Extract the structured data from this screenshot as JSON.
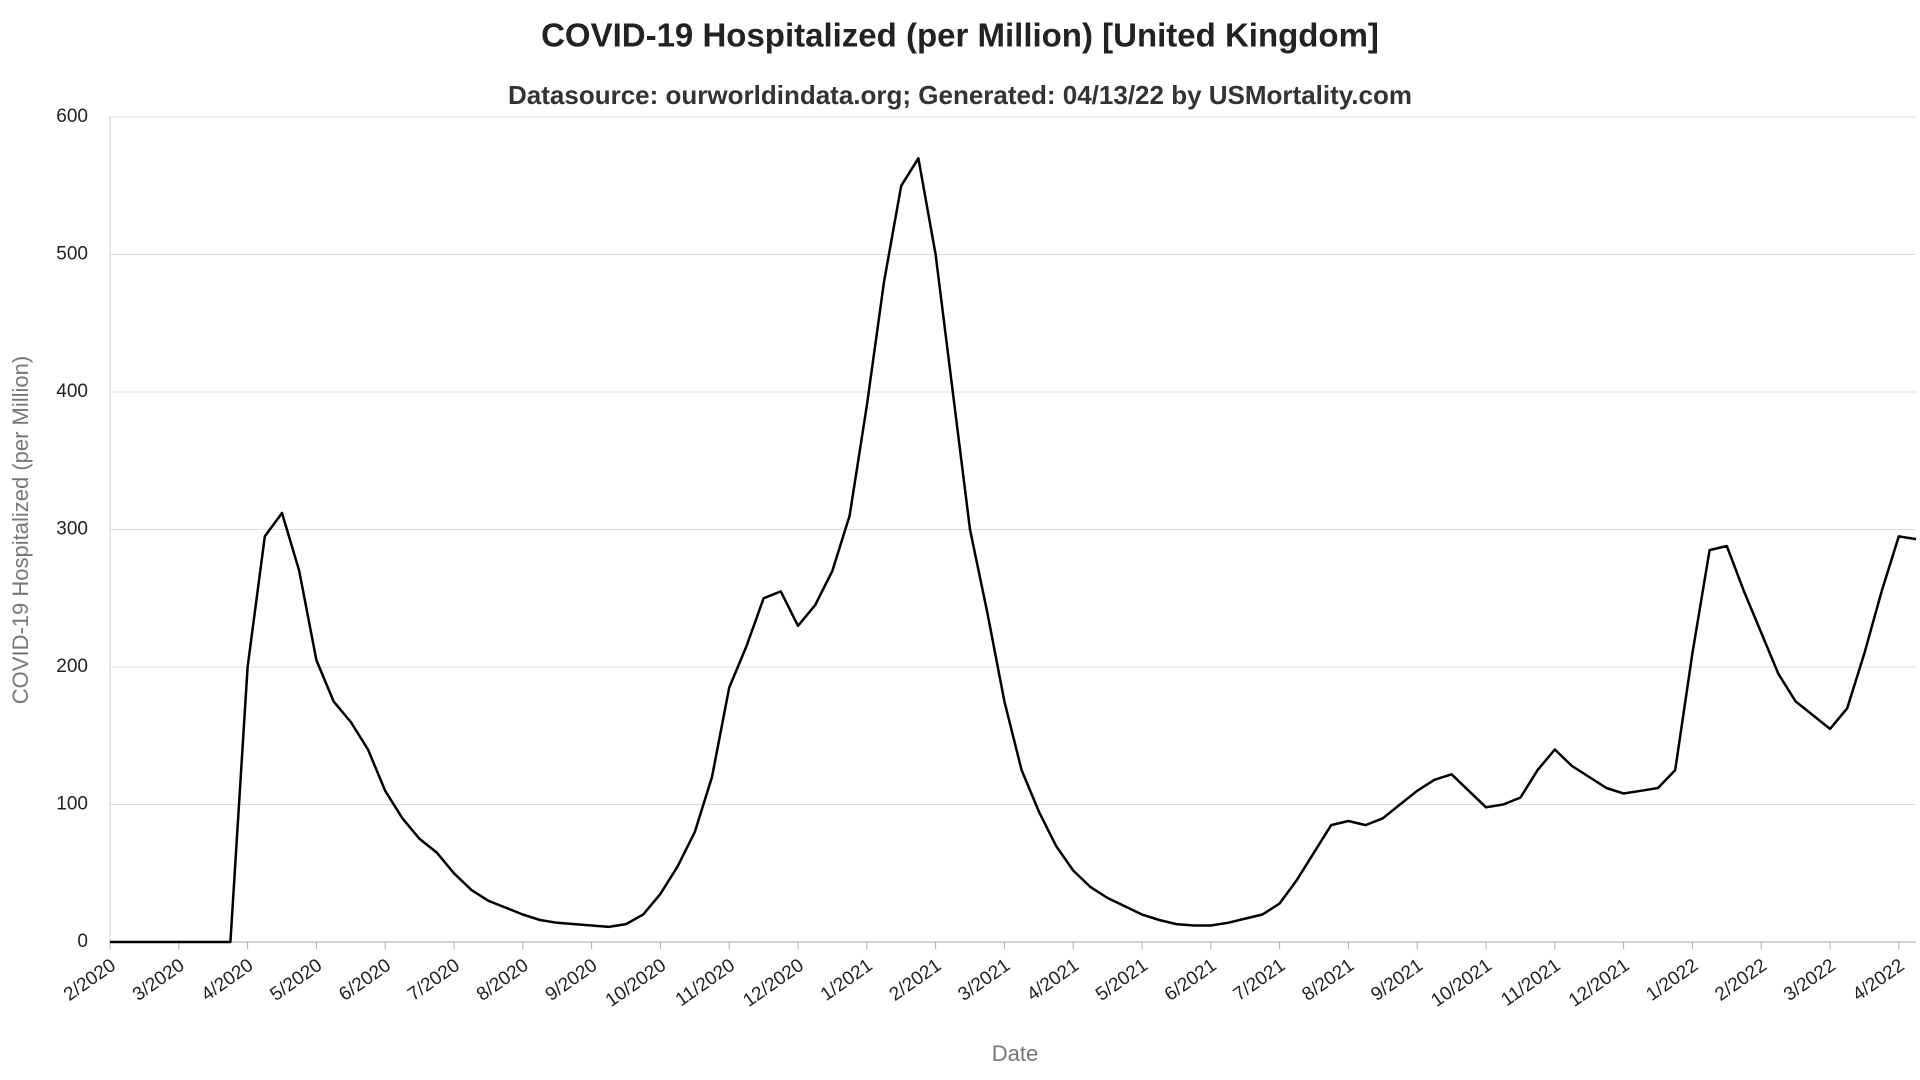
{
  "chart_data": {
    "type": "line",
    "title": "COVID-19 Hospitalized (per Million) [United Kingdom]",
    "subtitle": "Datasource: ourworldindata.org; Generated: 04/13/22 by USMortality.com",
    "x_label": "Date",
    "y_label": "COVID-19 Hospitalized (per Million)",
    "categories": [
      "2/2020",
      null,
      null,
      null,
      "3/2020",
      null,
      null,
      null,
      "4/2020",
      null,
      null,
      null,
      "5/2020",
      null,
      null,
      null,
      "6/2020",
      null,
      null,
      null,
      "7/2020",
      null,
      null,
      null,
      "8/2020",
      null,
      null,
      null,
      "9/2020",
      null,
      null,
      null,
      "10/2020",
      null,
      null,
      null,
      "11/2020",
      null,
      null,
      null,
      "12/2020",
      null,
      null,
      null,
      "1/2021",
      null,
      null,
      null,
      "2/2021",
      null,
      null,
      null,
      "3/2021",
      null,
      null,
      null,
      "4/2021",
      null,
      null,
      null,
      "5/2021",
      null,
      null,
      null,
      "6/2021",
      null,
      null,
      null,
      "7/2021",
      null,
      null,
      null,
      "8/2021",
      null,
      null,
      null,
      "9/2021",
      null,
      null,
      null,
      "10/2021",
      null,
      null,
      null,
      "11/2021",
      null,
      null,
      null,
      "12/2021",
      null,
      null,
      null,
      "1/2022",
      null,
      null,
      null,
      "2/2022",
      null,
      null,
      null,
      "3/2022",
      null,
      null,
      null,
      "4/2022",
      null
    ],
    "values": [
      0,
      0,
      0,
      0,
      0,
      0,
      0,
      0,
      200,
      295,
      312,
      270,
      205,
      175,
      160,
      140,
      110,
      90,
      75,
      65,
      50,
      38,
      30,
      25,
      20,
      16,
      14,
      13,
      12,
      11,
      13,
      20,
      35,
      55,
      80,
      120,
      185,
      215,
      250,
      255,
      230,
      245,
      270,
      310,
      390,
      480,
      550,
      570,
      500,
      400,
      300,
      240,
      175,
      125,
      95,
      70,
      52,
      40,
      32,
      26,
      20,
      16,
      13,
      12,
      12,
      14,
      17,
      20,
      28,
      45,
      65,
      85,
      88,
      85,
      90,
      100,
      110,
      118,
      122,
      110,
      98,
      100,
      105,
      125,
      140,
      128,
      120,
      112,
      108,
      110,
      112,
      125,
      210,
      285,
      288,
      255,
      225,
      195,
      175,
      165,
      155,
      170,
      210,
      255,
      295,
      293
    ],
    "color": "#000000",
    "ylim": [
      0,
      600
    ],
    "yticks": [
      0,
      100,
      200,
      300,
      400,
      500,
      600
    ],
    "grid": true
  }
}
